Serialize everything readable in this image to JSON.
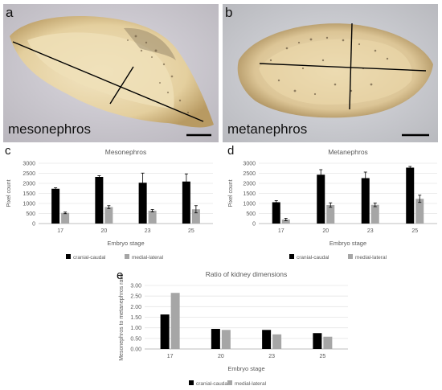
{
  "panels": {
    "a": {
      "letter": "a",
      "label": "mesonephros"
    },
    "b": {
      "letter": "b",
      "label": "metanephros"
    },
    "c": {
      "letter": "c"
    },
    "d": {
      "letter": "d"
    },
    "e": {
      "letter": "e"
    }
  },
  "colors": {
    "cranial_caudal": "#000000",
    "medial_lateral": "#a6a6a6",
    "axis": "#bfbfbf",
    "grid": "#e6e6e6",
    "text": "#595959"
  },
  "chart_data": [
    {
      "id": "c",
      "type": "bar",
      "title": "Mesonephros",
      "xlabel": "Embryo stage",
      "ylabel": "Pixel count",
      "categories": [
        "17",
        "20",
        "23",
        "25"
      ],
      "ylim": [
        0,
        3000
      ],
      "yticks": [
        "0",
        "500",
        "1000",
        "1500",
        "2000",
        "2500",
        "3000"
      ],
      "legend_position": "bottom",
      "series": [
        {
          "name": "cranial-caudal",
          "values": [
            1730,
            2320,
            2030,
            2090
          ],
          "errors": [
            50,
            60,
            480,
            380
          ]
        },
        {
          "name": "medial-lateral",
          "values": [
            530,
            820,
            640,
            710
          ],
          "errors": [
            40,
            70,
            60,
            180
          ]
        }
      ]
    },
    {
      "id": "d",
      "type": "bar",
      "title": "Metanephros",
      "xlabel": "Embryo stage",
      "ylabel": "Pixel count",
      "categories": [
        "17",
        "20",
        "23",
        "25"
      ],
      "ylim": [
        0,
        3000
      ],
      "yticks": [
        "0",
        "500",
        "1000",
        "1500",
        "2000",
        "2500",
        "3000"
      ],
      "legend_position": "bottom",
      "series": [
        {
          "name": "cranial-caudal",
          "values": [
            1060,
            2430,
            2260,
            2780
          ],
          "errors": [
            80,
            250,
            300,
            60
          ]
        },
        {
          "name": "medial-lateral",
          "values": [
            200,
            920,
            930,
            1230
          ],
          "errors": [
            60,
            110,
            90,
            180
          ]
        }
      ]
    },
    {
      "id": "e",
      "type": "bar",
      "title": "Ratio of kidney dimensions",
      "xlabel": "Embryo stage",
      "ylabel": "Mesonephros to metanephros ratio",
      "categories": [
        "17",
        "20",
        "23",
        "25"
      ],
      "ylim": [
        0,
        3
      ],
      "yticks": [
        "0.00",
        "0.50",
        "1.00",
        "1.50",
        "2.00",
        "2.50",
        "3.00"
      ],
      "legend_position": "bottom",
      "series": [
        {
          "name": "cranial-caudal",
          "values": [
            1.63,
            0.95,
            0.9,
            0.75
          ]
        },
        {
          "name": "medial-lateral",
          "values": [
            2.65,
            0.9,
            0.69,
            0.58
          ]
        }
      ]
    }
  ]
}
